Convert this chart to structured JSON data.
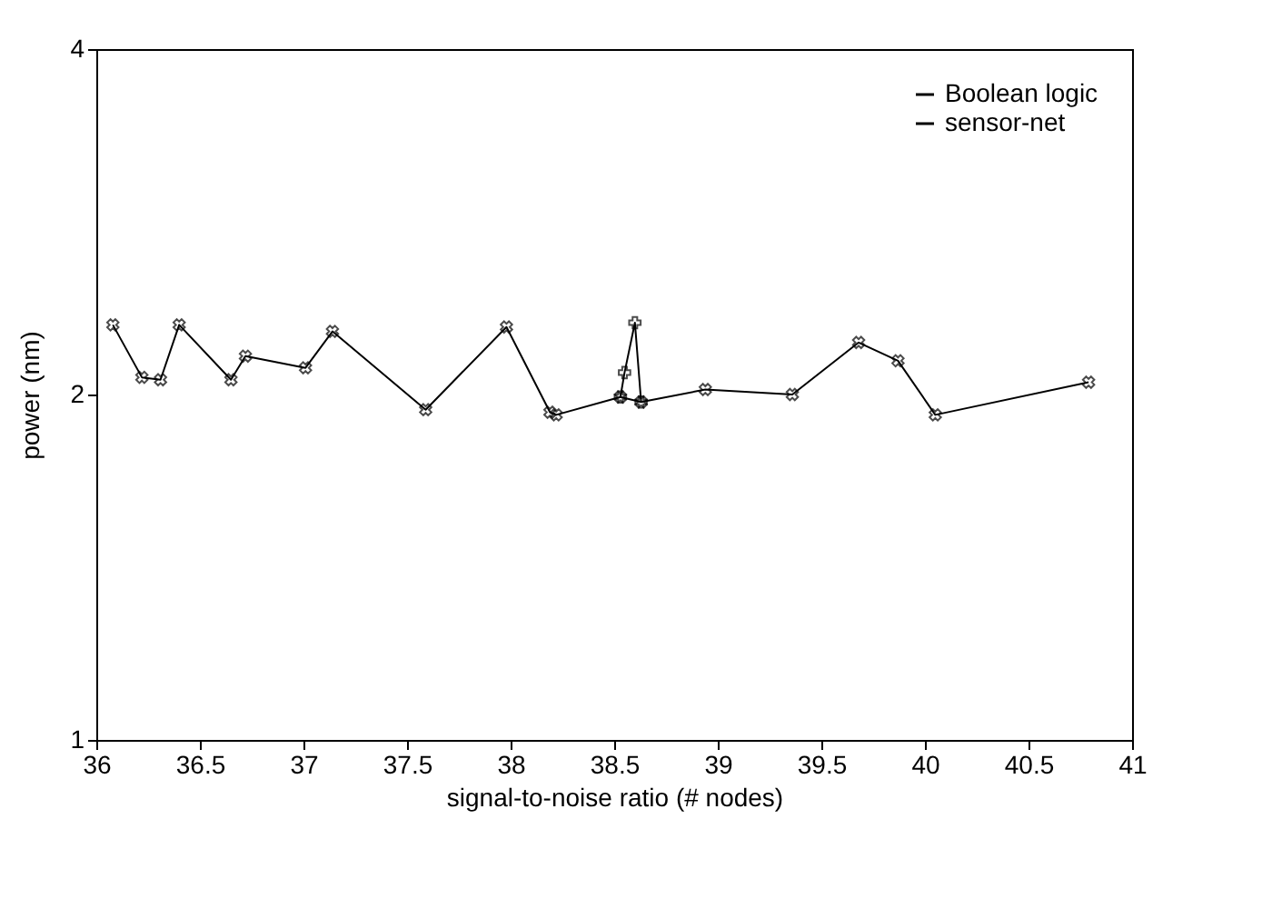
{
  "chart_data": {
    "type": "line",
    "xlabel": "signal-to-noise ratio (# nodes)",
    "ylabel": "power (nm)",
    "xlim": [
      36,
      41
    ],
    "xticks": [
      36,
      36.5,
      37,
      37.5,
      38,
      38.5,
      39,
      39.5,
      40,
      40.5,
      41
    ],
    "ylim": [
      1,
      4
    ],
    "yticks": [
      1,
      2,
      4
    ],
    "log": "y",
    "grid": false,
    "legend": "top right",
    "marker": "cross",
    "series": [
      {
        "name": "Boolean logic",
        "color": "#000000",
        "x": [
          38.53,
          38.55,
          38.6,
          38.63
        ],
        "values": [
          1.99,
          2.09,
          2.31,
          1.97
        ]
      },
      {
        "name": "sensor-net",
        "color": "#000000",
        "x": [
          36.08,
          36.22,
          36.31,
          36.4,
          36.65,
          36.72,
          37.01,
          37.14,
          37.59,
          37.98,
          38.19,
          38.22,
          38.53,
          38.63,
          38.94,
          39.36,
          39.68,
          39.87,
          40.05,
          40.79
        ],
        "values": [
          2.3,
          2.07,
          2.06,
          2.3,
          2.06,
          2.16,
          2.11,
          2.27,
          1.94,
          2.29,
          1.93,
          1.92,
          1.99,
          1.97,
          2.02,
          2.0,
          2.22,
          2.14,
          1.92,
          2.05
        ]
      }
    ]
  }
}
